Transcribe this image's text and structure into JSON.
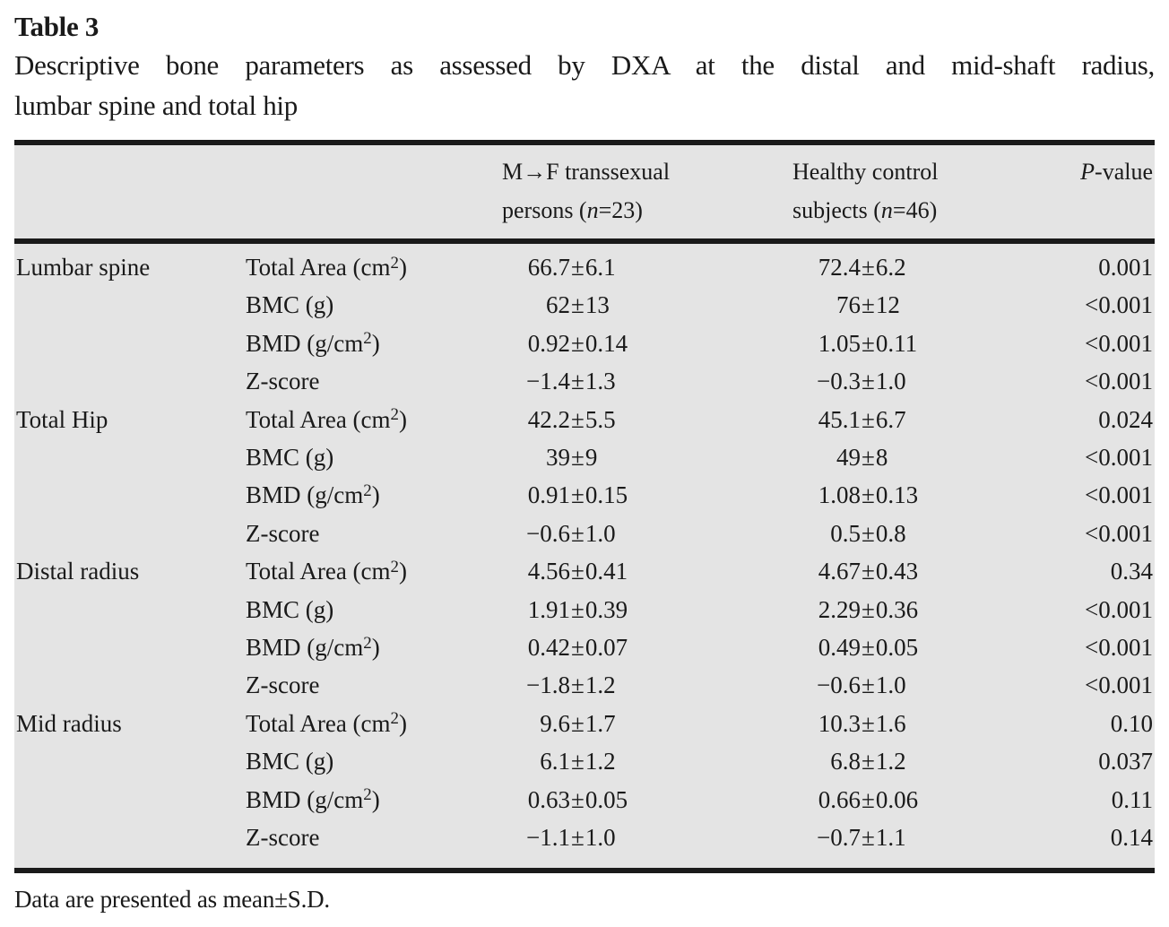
{
  "page": {
    "table_label": "Table 3",
    "caption_line1": "Descriptive bone parameters as assessed by DXA at the distal and mid-shaft radius,",
    "caption_line2": "lumbar spine and total hip",
    "footnote": "Data are presented as mean±S.D."
  },
  "colors": {
    "page_bg": "#ffffff",
    "table_bg": "#e4e4e4",
    "rule": "#1a1a1a",
    "text": "#1a1a1a"
  },
  "table": {
    "header": {
      "region": "",
      "parameter": "",
      "group1": "M→F transsexual persons (n=23)",
      "group2": "Healthy control subjects (n=46)",
      "pvalue": "P-value"
    },
    "groups": [
      {
        "region": "Lumbar spine",
        "rows": [
          {
            "param": "Total Area (cm^2)",
            "transsexual": "66.7±6.1",
            "control": "72.4±6.2",
            "p": "0.001"
          },
          {
            "param": "BMC (g)",
            "transsexual": "62±13",
            "control": "76±12",
            "p": "<0.001"
          },
          {
            "param": "BMD (g/cm^2)",
            "transsexual": "0.92±0.14",
            "control": "1.05±0.11",
            "p": "<0.001"
          },
          {
            "param": "Z-score",
            "transsexual": "−1.4±1.3",
            "control": "−0.3±1.0",
            "p": "<0.001"
          }
        ]
      },
      {
        "region": "Total Hip",
        "rows": [
          {
            "param": "Total Area (cm^2)",
            "transsexual": "42.2±5.5",
            "control": "45.1±6.7",
            "p": "0.024"
          },
          {
            "param": "BMC (g)",
            "transsexual": "39±9",
            "control": "49±8",
            "p": "<0.001"
          },
          {
            "param": "BMD (g/cm^2)",
            "transsexual": "0.91±0.15",
            "control": "1.08±0.13",
            "p": "<0.001"
          },
          {
            "param": "Z-score",
            "transsexual": "−0.6±1.0",
            "control": "0.5±0.8",
            "p": "<0.001"
          }
        ]
      },
      {
        "region": "Distal radius",
        "rows": [
          {
            "param": "Total Area (cm^2)",
            "transsexual": "4.56±0.41",
            "control": "4.67±0.43",
            "p": "0.34"
          },
          {
            "param": "BMC (g)",
            "transsexual": "1.91±0.39",
            "control": "2.29±0.36",
            "p": "<0.001"
          },
          {
            "param": "BMD (g/cm^2)",
            "transsexual": "0.42±0.07",
            "control": "0.49±0.05",
            "p": "<0.001"
          },
          {
            "param": "Z-score",
            "transsexual": "−1.8±1.2",
            "control": "−0.6±1.0",
            "p": "<0.001"
          }
        ]
      },
      {
        "region": "Mid radius",
        "rows": [
          {
            "param": "Total Area (cm^2)",
            "transsexual": "9.6±1.7",
            "control": "10.3±1.6",
            "p": "0.10"
          },
          {
            "param": "BMC (g)",
            "transsexual": "6.1±1.2",
            "control": "6.8±1.2",
            "p": "0.037"
          },
          {
            "param": "BMD (g/cm^2)",
            "transsexual": "0.63±0.05",
            "control": "0.66±0.06",
            "p": "0.11"
          },
          {
            "param": "Z-score",
            "transsexual": "−1.1±1.0",
            "control": "−0.7±1.1",
            "p": "0.14"
          }
        ]
      }
    ]
  }
}
